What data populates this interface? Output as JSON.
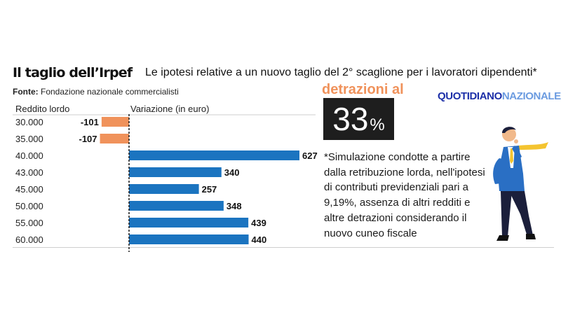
{
  "header": {
    "title": "Il taglio dell’Irpef",
    "subtitle": "Le ipotesi relative a un nuovo taglio del 2° scaglione per i lavoratori dipendenti*",
    "source_label": "Fonte:",
    "source_value": "Fondazione nazionale commercialisti"
  },
  "brand": {
    "part1": "QUOTIDIANO",
    "part2": "NAZIONALE"
  },
  "detrazioni": {
    "label": "detrazioni al",
    "value": "33",
    "unit": "%"
  },
  "note": "*Simulazione condotte a partire dalla retribuzione lorda, nell'ipotesi di contributi previdenziali pari a 9,19%, assenza di altri redditi e altre detrazioni considerando il nuovo cuneo fiscale",
  "colors": {
    "positive": "#1b74c0",
    "negative": "#f0925b",
    "accent": "#f0925b",
    "brand_dark": "#1c2fa8",
    "brand_light": "#6b9be0"
  },
  "chart_data": {
    "type": "bar",
    "orientation": "horizontal",
    "xlabel": "Variazione (in euro)",
    "ylabel": "Reddito lordo",
    "categories": [
      "30.000",
      "35.000",
      "40.000",
      "43.000",
      "45.000",
      "50.000",
      "55.000",
      "60.000"
    ],
    "values": [
      -101,
      -107,
      627,
      340,
      257,
      348,
      439,
      440
    ],
    "data_labels": [
      "-101",
      "-107",
      "627",
      "340",
      "257",
      "348",
      "439",
      "440"
    ],
    "xlim": [
      -107,
      627
    ],
    "grid": false,
    "legend": false
  }
}
